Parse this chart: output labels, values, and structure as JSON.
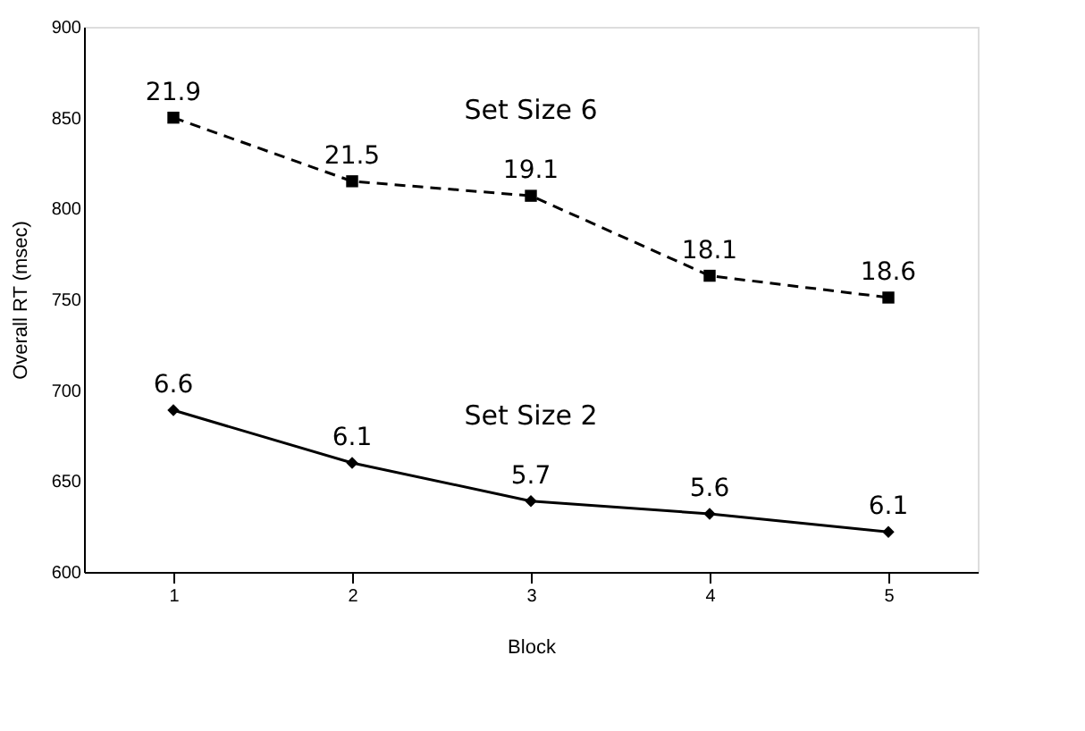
{
  "chart_data": {
    "type": "line",
    "xlabel": "Block",
    "ylabel": "Overall RT (msec)",
    "categories": [
      "1",
      "2",
      "3",
      "4",
      "5"
    ],
    "series": [
      {
        "name": "Set Size 6",
        "color": "#000000",
        "marker": "square",
        "line_style": "dashed",
        "values": [
          850,
          815,
          807,
          763,
          751
        ]
      },
      {
        "name": "Set Size 2",
        "color": "#000000",
        "marker": "diamond",
        "line_style": "solid",
        "values": [
          689,
          660,
          639,
          632,
          622
        ]
      }
    ],
    "annotations": [
      {
        "text": "21.9",
        "x": "1",
        "y": 850
      },
      {
        "text": "21.5",
        "x": "2",
        "y": 815
      },
      {
        "text": "19.1",
        "x": "3",
        "y": 807
      },
      {
        "text": "18.1",
        "x": "4",
        "y": 763
      },
      {
        "text": "18.6",
        "x": "5",
        "y": 751
      },
      {
        "text": "6.6",
        "x": "1",
        "y": 689
      },
      {
        "text": "6.1",
        "x": "2",
        "y": 660
      },
      {
        "text": "5.7",
        "x": "3",
        "y": 639
      },
      {
        "text": "5.6",
        "x": "4",
        "y": 632
      },
      {
        "text": "6.1",
        "x": "5",
        "y": 622
      }
    ],
    "ylim": [
      600,
      900
    ],
    "yticks": [
      600,
      650,
      700,
      750,
      800,
      850,
      900
    ],
    "grid": false
  }
}
